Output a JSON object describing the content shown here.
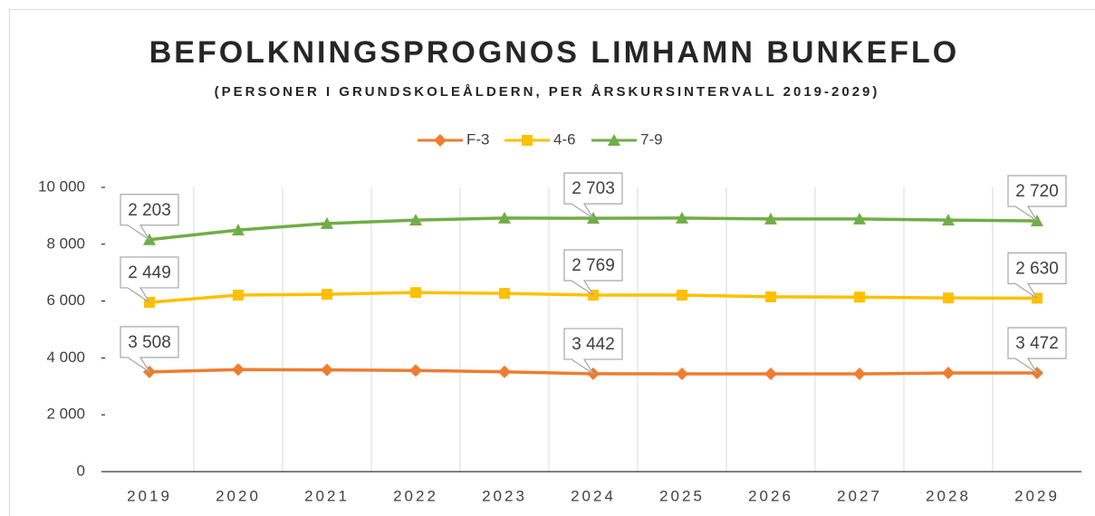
{
  "chart_data": {
    "type": "line",
    "stacked": true,
    "title": "BEFOLKNINGSPROGNOS LIMHAMN BUNKEFLO",
    "subtitle": "(PERSONER I GRUNDSKOLEÅLDERN, PER ÅRSKURSINTERVALL 2019-2029)",
    "categories": [
      "2019",
      "2020",
      "2021",
      "2022",
      "2023",
      "2024",
      "2025",
      "2026",
      "2027",
      "2028",
      "2029"
    ],
    "series": [
      {
        "name": "F-3",
        "color": "#ED7D31",
        "marker": "diamond",
        "values": [
          3508,
          3590,
          3580,
          3560,
          3510,
          3442,
          3440,
          3440,
          3440,
          3470,
          3472
        ],
        "value_labels": [
          "3 508",
          null,
          null,
          null,
          null,
          "3 442",
          null,
          null,
          null,
          null,
          "3 472"
        ]
      },
      {
        "name": "4-6",
        "color": "#FFC000",
        "marker": "square",
        "values": [
          2449,
          2620,
          2660,
          2740,
          2760,
          2769,
          2770,
          2710,
          2700,
          2640,
          2630
        ],
        "value_labels": [
          "2 449",
          null,
          null,
          null,
          null,
          "2 769",
          null,
          null,
          null,
          null,
          "2 630"
        ]
      },
      {
        "name": "7-9",
        "color": "#70AD47",
        "marker": "triangle",
        "values": [
          2203,
          2290,
          2490,
          2550,
          2650,
          2703,
          2710,
          2740,
          2750,
          2740,
          2720
        ],
        "value_labels": [
          "2 203",
          null,
          null,
          null,
          null,
          "2 703",
          null,
          null,
          null,
          null,
          "2 720"
        ]
      }
    ],
    "ylim": [
      0,
      10000
    ],
    "yticks": [
      0,
      {
        "value": 2000,
        "label": "2 000"
      },
      {
        "value": 4000,
        "label": "4 000"
      },
      {
        "value": 6000,
        "label": "6 000"
      },
      {
        "value": 8000,
        "label": "8 000"
      },
      {
        "value": 10000,
        "label": "10 000"
      }
    ],
    "vertical_grid": true,
    "legend": "top"
  }
}
